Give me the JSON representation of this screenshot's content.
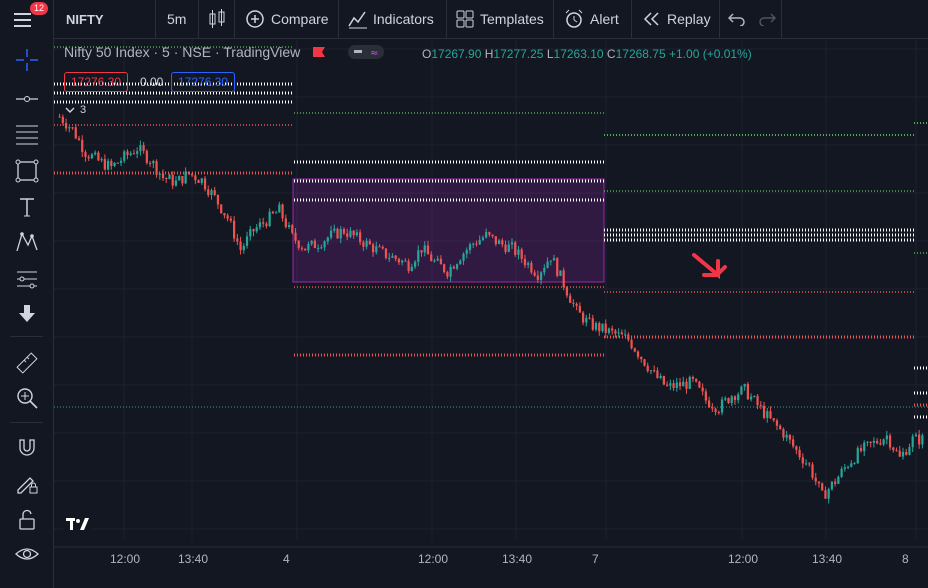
{
  "topbar": {
    "menu_badge": "12",
    "symbol": "NIFTY",
    "interval": "5m",
    "compare": "Compare",
    "indicators": "Indicators",
    "templates": "Templates",
    "alert": "Alert",
    "replay": "Replay"
  },
  "legend": {
    "title": "Nifty 50 Index · 5 · NSE · TradingView",
    "o_label": "O",
    "o": "17267.90",
    "h_label": "H",
    "h": "17277.25",
    "l_label": "L",
    "l": "17263.10",
    "c_label": "C",
    "c": "17268.75",
    "change": "+1.00 (+0.01%)",
    "sell_price": "17276.30",
    "spread": "0.00",
    "buy_price": "17276.30",
    "indicator_count": "3"
  },
  "xaxis": [
    "12:00",
    "13:40",
    "4",
    "12:00",
    "13:40",
    "7",
    "12:00",
    "13:40",
    "8"
  ],
  "colors": {
    "background": "#131722",
    "up": "#26a69a",
    "down": "#ef5350",
    "box": "#9c27b0",
    "accent": "#2962ff"
  },
  "chart_data": {
    "type": "candlestick",
    "symbol": "Nifty 50 Index",
    "interval": "5",
    "exchange": "NSE",
    "sessions": [
      "4",
      "7",
      "8"
    ],
    "close_trend": [
      17400,
      17390,
      17372,
      17365,
      17360,
      17368,
      17375,
      17366,
      17352,
      17348,
      17355,
      17350,
      17336,
      17320,
      17295,
      17310,
      17318,
      17326,
      17305,
      17296,
      17300,
      17306,
      17310,
      17304,
      17298,
      17292,
      17288,
      17283,
      17296,
      17285,
      17278,
      17290,
      17300,
      17306,
      17300,
      17296,
      17286,
      17276,
      17290,
      17268,
      17246,
      17236,
      17232,
      17228,
      17224,
      17210,
      17196,
      17186,
      17188,
      17190,
      17176,
      17170,
      17180,
      17184,
      17172,
      17160,
      17150,
      17136,
      17124,
      17100,
      17112,
      17126,
      17136,
      17142,
      17148,
      17130,
      17145
    ]
  }
}
